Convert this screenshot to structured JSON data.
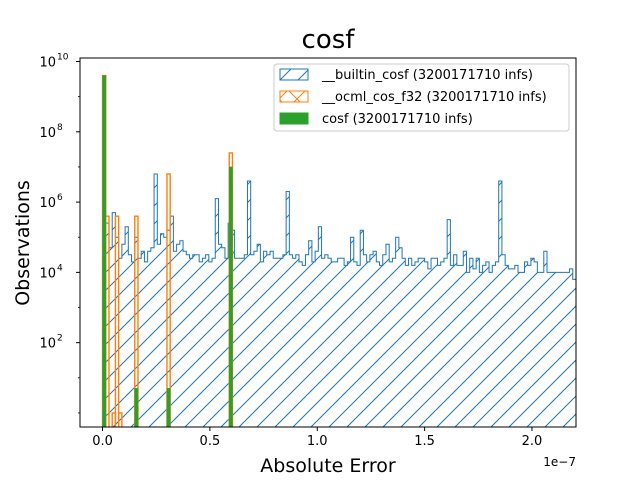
{
  "chart_data": {
    "type": "histogram",
    "title": "cosf",
    "xlabel": "Absolute Error",
    "ylabel": "Observations",
    "x_offset_label": "1e−7",
    "x_scale_exponent": -7,
    "y_scale": "log",
    "xlim": [
      -0.105,
      2.205
    ],
    "ylim_exponent": [
      -0.4,
      10.1
    ],
    "x_ticks": [
      0.0,
      0.5,
      1.0,
      1.5,
      2.0
    ],
    "x_tick_labels": [
      "0.0",
      "0.5",
      "1.0",
      "1.5",
      "2.0"
    ],
    "y_ticks_exponent": [
      2,
      4,
      6,
      8,
      10
    ],
    "y_tick_labels": [
      "10",
      "10",
      "10",
      "10",
      "10"
    ],
    "y_tick_sups": [
      "2",
      "4",
      "6",
      "8",
      "10"
    ],
    "grid": false,
    "legend_position": "top-right",
    "legend": [
      {
        "label": "__builtin_cosf (3200171710 infs)",
        "color": "#1f77b4",
        "style": "hatch-diag"
      },
      {
        "label": "__ocml_cos_f32 (3200171710 infs)",
        "color": "#ff7f0e",
        "style": "hatch-cross"
      },
      {
        "label": "cosf (3200171710 infs)",
        "color": "#2ca02c",
        "style": "solid"
      }
    ],
    "bin_width": 0.015,
    "series": [
      {
        "name": "__builtin_cosf (3200171710 infs)",
        "color": "#1f77b4",
        "bin_start": 0.0,
        "log10_counts": [
          9.6,
          5.4,
          4.7,
          5.7,
          5.0,
          4.4,
          4.8,
          5.3,
          4.5,
          4.3,
          5.0,
          4.4,
          4.6,
          4.3,
          4.6,
          4.7,
          6.8,
          4.8,
          5.1,
          5.0,
          5.2,
          5.6,
          4.6,
          4.8,
          4.9,
          4.6,
          4.5,
          4.4,
          4.5,
          4.5,
          4.3,
          4.4,
          4.5,
          4.3,
          4.4,
          6.1,
          4.8,
          4.7,
          4.4,
          5.4,
          5.2,
          4.4,
          4.4,
          4.4,
          4.5,
          6.6,
          4.5,
          4.6,
          4.8,
          4.3,
          4.6,
          4.5,
          4.6,
          4.4,
          4.4,
          4.4,
          4.5,
          6.3,
          4.5,
          4.4,
          4.5,
          4.3,
          4.2,
          4.5,
          4.9,
          4.3,
          4.6,
          5.3,
          4.4,
          4.5,
          4.4,
          4.3,
          4.3,
          4.4,
          4.4,
          4.2,
          4.3,
          5.0,
          4.3,
          4.2,
          5.2,
          4.5,
          4.3,
          4.5,
          4.6,
          4.3,
          4.2,
          4.5,
          4.8,
          4.3,
          4.4,
          5.0,
          4.7,
          4.4,
          4.2,
          4.4,
          4.2,
          4.3,
          4.4,
          4.4,
          4.3,
          4.1,
          4.4,
          4.4,
          4.2,
          4.3,
          4.4,
          5.5,
          4.2,
          4.5,
          4.2,
          4.2,
          4.6,
          4.0,
          4.4,
          4.1,
          4.4,
          4.0,
          4.2,
          4.3,
          4.0,
          4.2,
          4.3,
          6.6,
          4.5,
          4.2,
          4.1,
          4.1,
          4.2,
          4.0,
          4.0,
          4.3,
          4.2,
          4.4,
          4.3,
          4.0,
          4.0,
          4.6,
          4.0,
          4.0,
          4.0,
          4.0,
          4.0,
          4.0,
          4.0,
          4.1,
          3.8,
          4.0,
          4.0,
          4.1,
          4.2,
          4.6,
          4.0,
          4.0,
          4.0,
          4.0,
          4.0,
          4.0,
          4.0,
          4.2,
          4.0,
          3.7,
          4.0,
          4.0,
          4.0,
          4.0,
          4.5,
          4.0,
          4.0,
          4.0,
          4.1,
          4.4,
          4.0,
          4.0,
          4.0,
          4.1,
          4.0,
          3.4,
          4.0,
          4.0,
          4.0,
          4.0,
          4.1,
          5.0,
          3.9,
          4.4,
          3.9,
          3.9,
          4.0,
          3.9,
          4.0,
          4.1,
          4.0,
          3.4,
          3.5,
          3.8,
          3.6,
          3.6
        ]
      },
      {
        "name": "__ocml_cos_f32 (3200171710 infs)",
        "color": "#ff7f0e",
        "bars": [
          {
            "x": 0.0,
            "log10_count": 9.6
          },
          {
            "x": 0.015,
            "log10_count": 5.6
          },
          {
            "x": 0.045,
            "log10_count": 0.0
          },
          {
            "x": 0.06,
            "log10_count": 5.6
          },
          {
            "x": 0.075,
            "log10_count": 0.0
          },
          {
            "x": 0.15,
            "log10_count": 5.6
          },
          {
            "x": 0.3,
            "log10_count": 6.8
          },
          {
            "x": 0.59,
            "log10_count": 7.4
          }
        ]
      },
      {
        "name": "cosf (3200171710 infs)",
        "color": "#2ca02c",
        "bars": [
          {
            "x": 0.0,
            "log10_count": 9.6
          },
          {
            "x": 0.15,
            "log10_count": 0.7
          },
          {
            "x": 0.3,
            "log10_count": 0.7
          },
          {
            "x": 0.59,
            "log10_count": 7.0
          }
        ]
      }
    ]
  }
}
